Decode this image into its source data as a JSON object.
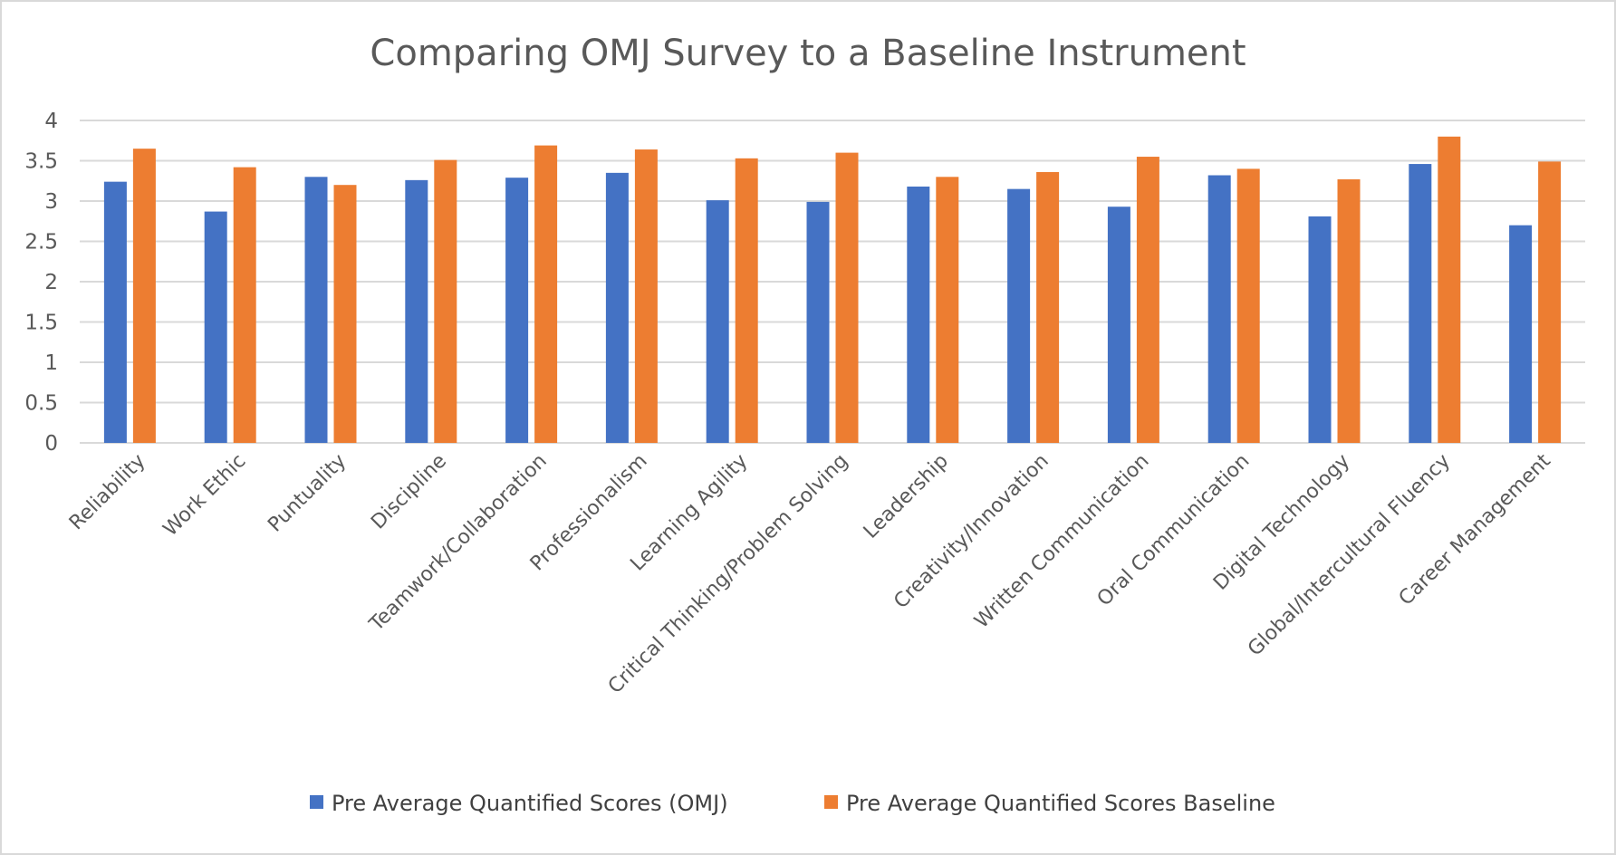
{
  "chart_data": {
    "type": "bar",
    "title": "Comparing OMJ Survey to a Baseline Instrument",
    "xlabel": "",
    "ylabel": "",
    "ylim": [
      0,
      4
    ],
    "yticks": [
      "0",
      "0.5",
      "1",
      "1.5",
      "2",
      "2.5",
      "3",
      "3.5",
      "4"
    ],
    "grid": true,
    "legend_position": "bottom",
    "categories": [
      "Reliability",
      "Work Ethic",
      "Puntuality",
      "Discipline",
      "Teamwork/Collaboration",
      "Professionalism",
      "Learning Agility",
      "Critical Thinking/Problem Solving",
      "Leadership",
      "Creativity/Innovation",
      "Written Communication",
      "Oral Communication",
      "Digital Technology",
      "Global/Intercultural Fluency",
      "Career Management"
    ],
    "series": [
      {
        "name": "Pre Average Quantified Scores (OMJ)",
        "color": "#4472C4",
        "values": [
          3.24,
          2.87,
          3.3,
          3.26,
          3.29,
          3.35,
          3.01,
          2.99,
          3.18,
          3.15,
          2.93,
          3.32,
          2.81,
          3.46,
          2.7
        ]
      },
      {
        "name": "Pre Average Quantified Scores Baseline",
        "color": "#ED7D31",
        "values": [
          3.65,
          3.42,
          3.2,
          3.51,
          3.69,
          3.64,
          3.53,
          3.6,
          3.3,
          3.36,
          3.55,
          3.4,
          3.27,
          3.8,
          3.49
        ]
      }
    ]
  }
}
